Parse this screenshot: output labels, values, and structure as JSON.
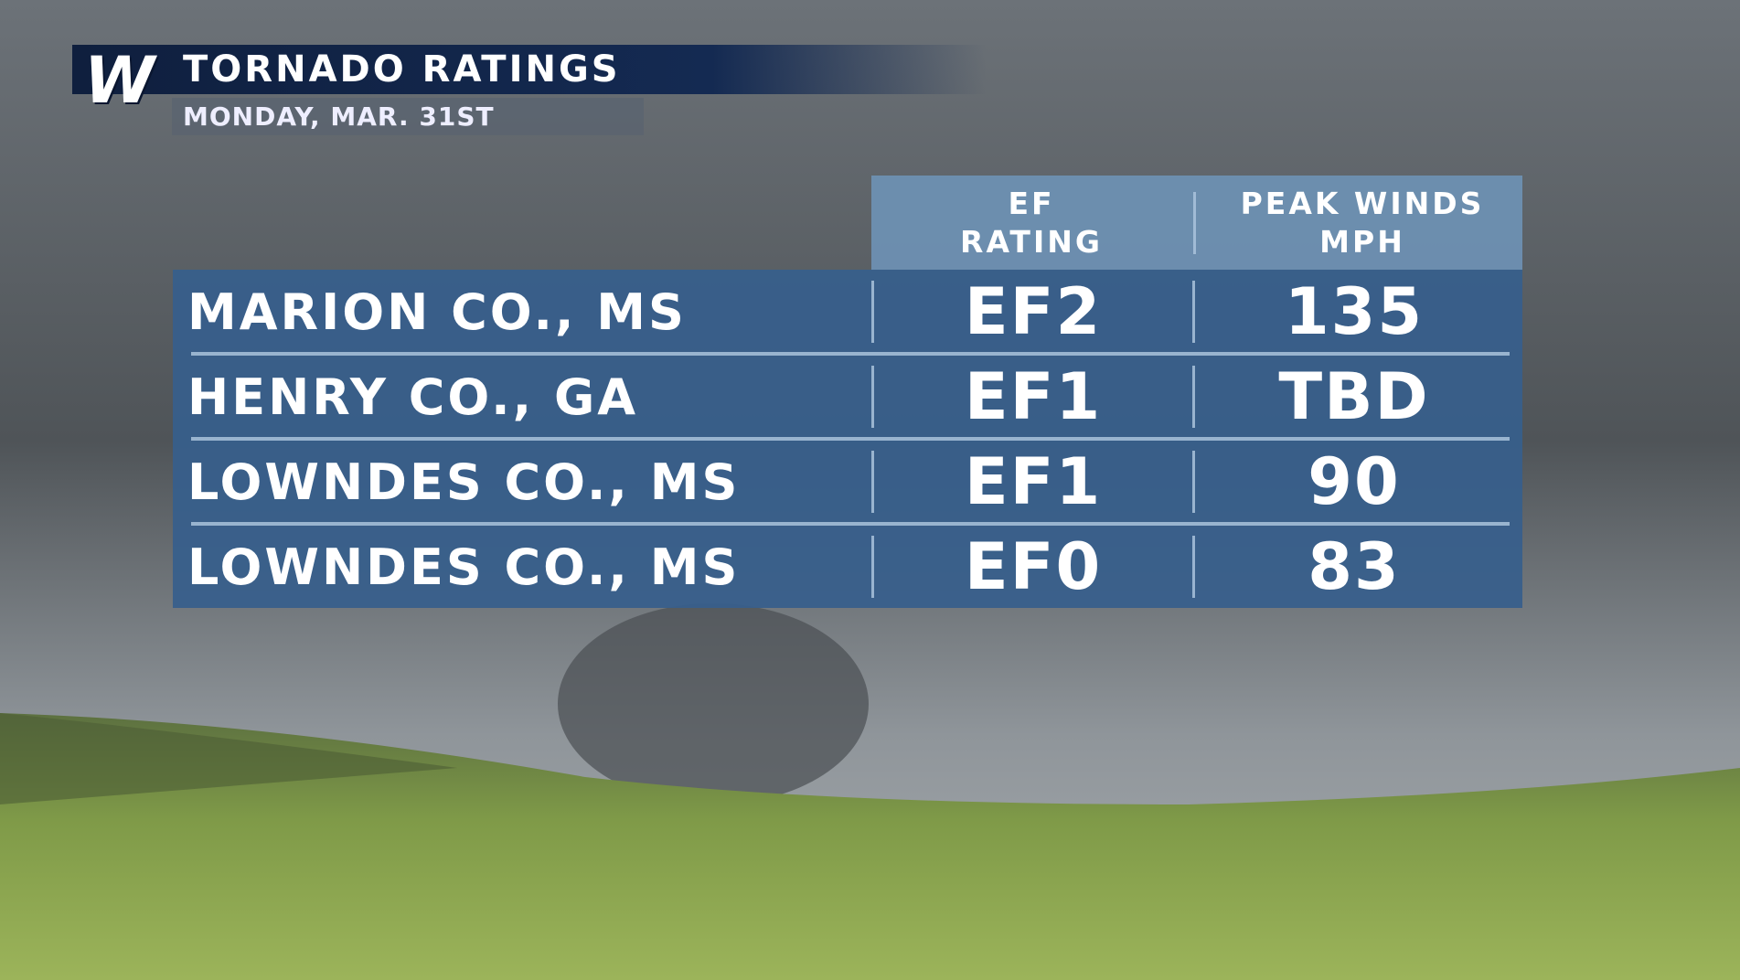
{
  "header": {
    "logo": "W",
    "title": "TORNADO RATINGS",
    "subtitle": "MONDAY, MAR. 31ST"
  },
  "table": {
    "columns": [
      [
        "EF",
        "RATING"
      ],
      [
        "PEAK WINDS",
        "MPH"
      ]
    ],
    "rows": [
      [
        "MARION CO., MS",
        "EF2",
        135
      ],
      [
        "HENRY CO., GA",
        "EF1",
        "TBD"
      ],
      [
        "LOWNDES CO., MS",
        "EF1",
        90
      ],
      [
        "LOWNDES CO., MS",
        "EF0",
        83
      ]
    ]
  }
}
